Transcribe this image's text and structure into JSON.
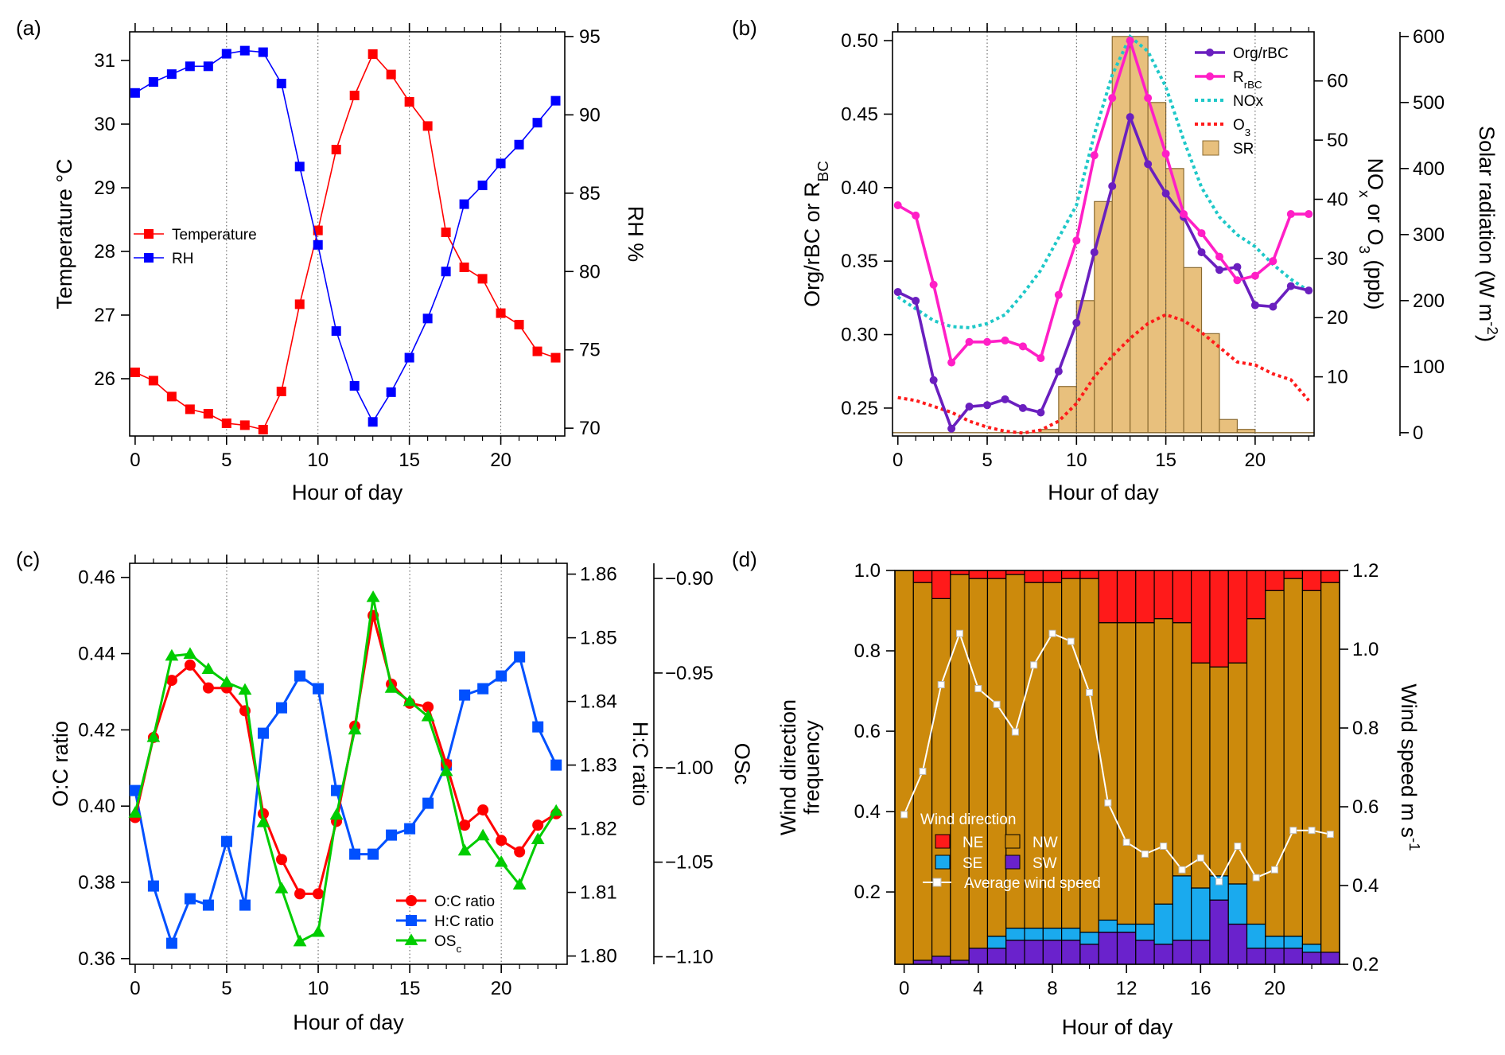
{
  "chart_data": [
    {
      "panel": "(a)",
      "type": "line",
      "xlabel": "Hour of day",
      "ylabel": "Temperature °C",
      "y2label": "RH %",
      "xlim": [
        -0.3,
        23.5
      ],
      "ylim": [
        25.1,
        31.45
      ],
      "y2lim": [
        69.5,
        95.3
      ],
      "xticks": [
        0,
        5,
        10,
        15,
        20
      ],
      "yticks": [
        26,
        27,
        28,
        29,
        30,
        31
      ],
      "y2ticks": [
        70,
        75,
        80,
        85,
        90,
        95
      ],
      "grid": "vertical dotted at 5, 10, 15, 20",
      "legend": "center-left",
      "x": [
        0,
        1,
        2,
        3,
        4,
        5,
        6,
        7,
        8,
        9,
        10,
        11,
        12,
        13,
        14,
        15,
        16,
        17,
        18,
        19,
        20,
        21,
        22,
        23
      ],
      "series": [
        {
          "name": "Temperature",
          "axis": "left",
          "color": "#ff0000",
          "marker": "square",
          "values": [
            26.1,
            25.97,
            25.72,
            25.52,
            25.45,
            25.3,
            25.27,
            25.2,
            25.8,
            27.17,
            28.33,
            29.6,
            30.45,
            31.1,
            30.78,
            30.35,
            29.97,
            28.3,
            27.75,
            27.57,
            27.03,
            26.85,
            26.43,
            26.33
          ]
        },
        {
          "name": "RH",
          "axis": "right",
          "color": "#0000ff",
          "marker": "square",
          "values": [
            91.4,
            92.1,
            92.6,
            93.1,
            93.1,
            93.9,
            94.1,
            94.0,
            92.0,
            86.7,
            81.7,
            76.2,
            72.7,
            70.4,
            72.3,
            74.5,
            77.0,
            80.0,
            84.3,
            85.5,
            86.9,
            88.1,
            89.5,
            90.9
          ]
        }
      ]
    },
    {
      "panel": "(b)",
      "type": "line",
      "xlabel": "Hour of day",
      "ylabel": "Org/rBC or R_BC",
      "ylabel_main": "Org/rBC or R",
      "ylabel_sub": "BC",
      "y2label_parts": [
        "NO",
        "x",
        " or O",
        "3",
        " (ppb)"
      ],
      "y3label_parts": [
        "Solar radiation (W m",
        "-2",
        ")"
      ],
      "xlim": [
        -0.3,
        23.3
      ],
      "ylim": [
        0.231,
        0.506
      ],
      "y2lim": [
        0,
        68.3
      ],
      "y3lim": [
        -5,
        607
      ],
      "xticks": [
        0,
        5,
        10,
        15,
        20
      ],
      "yticks": [
        0.25,
        0.3,
        0.35,
        0.4,
        0.45,
        0.5
      ],
      "y2ticks": [
        10,
        20,
        30,
        40,
        50,
        60
      ],
      "y3ticks": [
        0,
        100,
        200,
        300,
        400,
        500,
        600
      ],
      "grid": "vertical dotted at 5, 10, 15, 20",
      "legend": "top-right",
      "legend_entries": [
        {
          "label": "Org/rBC",
          "main": "Org/rBC",
          "sub": ""
        },
        {
          "label": "R_rBC",
          "main": "R",
          "sub": "rBC"
        },
        {
          "label": "NOx",
          "main": "NOx",
          "sub": ""
        },
        {
          "label": "O_3",
          "main": "O",
          "sub": "3"
        },
        {
          "label": "SR",
          "main": "SR",
          "sub": ""
        }
      ],
      "x": [
        0,
        1,
        2,
        3,
        4,
        5,
        6,
        7,
        8,
        9,
        10,
        11,
        12,
        13,
        14,
        15,
        16,
        17,
        18,
        19,
        20,
        21,
        22,
        23
      ],
      "series": [
        {
          "name": "Org/rBC",
          "axis": "left",
          "color": "#6a1fbf",
          "style": "line-circle",
          "values": [
            0.329,
            0.323,
            0.269,
            0.236,
            0.251,
            0.252,
            0.256,
            0.25,
            0.247,
            0.275,
            0.308,
            0.356,
            0.401,
            0.448,
            0.416,
            0.396,
            0.38,
            0.356,
            0.344,
            0.346,
            0.32,
            0.319,
            0.333,
            0.33
          ]
        },
        {
          "name": "R_rBC",
          "axis": "left",
          "color": "#ff1fc6",
          "style": "line-circle",
          "values": [
            0.388,
            0.381,
            0.334,
            0.281,
            0.295,
            0.295,
            0.296,
            0.292,
            0.284,
            0.327,
            0.364,
            0.422,
            0.461,
            0.5,
            0.461,
            0.423,
            0.382,
            0.369,
            0.353,
            0.337,
            0.34,
            0.35,
            0.382,
            0.382
          ]
        },
        {
          "name": "NOx",
          "axis": "right",
          "color": "#1ec8c8",
          "style": "dotted",
          "values": [
            23.5,
            21.5,
            19.5,
            18.5,
            18.3,
            19,
            20.5,
            24,
            28,
            33.5,
            39,
            51,
            61,
            67.5,
            65,
            59,
            50,
            42,
            37,
            34,
            32,
            29,
            26.5,
            24.5
          ]
        },
        {
          "name": "O_3",
          "axis": "right",
          "color": "#ff1a1a",
          "style": "dotted",
          "values": [
            6.5,
            6,
            5,
            4,
            2.5,
            1.5,
            0.8,
            0.5,
            1,
            2.5,
            5.5,
            10,
            13.5,
            16.5,
            19,
            20.5,
            19.5,
            17.5,
            15,
            12.5,
            12,
            10.5,
            9.5,
            6
          ]
        },
        {
          "name": "SR",
          "axis": "right2",
          "color": "#e8c07d",
          "style": "bar",
          "values": [
            0,
            0,
            0,
            0,
            0,
            0,
            0,
            0,
            5,
            70,
            200,
            350,
            600,
            600,
            500,
            400,
            250,
            150,
            20,
            5,
            0,
            0,
            0,
            0
          ]
        }
      ]
    },
    {
      "panel": "(c)",
      "type": "line",
      "xlabel": "Hour of day",
      "ylabel": "O:C ratio",
      "y2label": "H:C ratio",
      "y3label": "OSc",
      "xlim": [
        -0.3,
        23.6
      ],
      "ylim": [
        0.3585,
        0.4637
      ],
      "y2lim": [
        1.7987,
        1.8617
      ],
      "y3lim": [
        -1.104,
        -0.892
      ],
      "xticks": [
        0,
        5,
        10,
        15,
        20
      ],
      "yticks": [
        0.36,
        0.38,
        0.4,
        0.42,
        0.44,
        0.46
      ],
      "y2ticks": [
        1.8,
        1.81,
        1.82,
        1.83,
        1.84,
        1.85,
        1.86
      ],
      "y3ticks": [
        -1.1,
        -1.05,
        -1.0,
        -0.95,
        -0.9
      ],
      "grid": "vertical dotted at 5, 10, 15, 20",
      "legend": "bottom-right",
      "legend_entries": [
        {
          "label": "O:C ratio",
          "main": "O:C ratio",
          "sub": ""
        },
        {
          "label": "H:C ratio",
          "main": "H:C ratio",
          "sub": ""
        },
        {
          "label": "OS_c",
          "main": "OS",
          "sub": "c"
        }
      ],
      "x": [
        0,
        1,
        2,
        3,
        4,
        5,
        6,
        7,
        8,
        9,
        10,
        11,
        12,
        13,
        14,
        15,
        16,
        17,
        18,
        19,
        20,
        21,
        22,
        23
      ],
      "series": [
        {
          "name": "O:C ratio",
          "axis": "left",
          "color": "#ff0000",
          "marker": "circle",
          "values": [
            0.397,
            0.418,
            0.433,
            0.437,
            0.431,
            0.431,
            0.425,
            0.398,
            0.386,
            0.377,
            0.377,
            0.396,
            0.421,
            0.45,
            0.432,
            0.427,
            0.426,
            0.411,
            0.395,
            0.399,
            0.391,
            0.388,
            0.395,
            0.398
          ]
        },
        {
          "name": "H:C ratio",
          "axis": "right",
          "color": "#0050ff",
          "marker": "square",
          "values": [
            1.826,
            1.811,
            1.802,
            1.809,
            1.808,
            1.818,
            1.808,
            1.835,
            1.839,
            1.844,
            1.842,
            1.826,
            1.816,
            1.816,
            1.819,
            1.82,
            1.824,
            1.83,
            1.841,
            1.842,
            1.844,
            1.847,
            1.836,
            1.83
          ]
        },
        {
          "name": "OS_c",
          "axis": "right2",
          "color": "#00cc00",
          "marker": "triangle",
          "values": [
            -1.024,
            -0.984,
            -0.941,
            -0.94,
            -0.948,
            -0.955,
            -0.959,
            -1.029,
            -1.064,
            -1.092,
            -1.087,
            -1.025,
            -0.98,
            -0.91,
            -0.958,
            -0.965,
            -0.973,
            -1.002,
            -1.044,
            -1.036,
            -1.05,
            -1.062,
            -1.038,
            -1.023
          ]
        }
      ]
    },
    {
      "panel": "(d)",
      "type": "bar",
      "stacked": true,
      "xlabel": "Hour of day",
      "ylabel_lines": [
        "Wind direction",
        "frequency"
      ],
      "y2label_parts": [
        "Wind speed m s",
        "-1"
      ],
      "xlim": [
        -0.5,
        23.5
      ],
      "ylim": [
        0.02,
        1.0
      ],
      "y2lim": [
        0.2,
        1.2
      ],
      "xticks": [
        0,
        4,
        8,
        12,
        16,
        20
      ],
      "yticks": [
        0.2,
        0.4,
        0.6,
        0.8,
        1.0
      ],
      "y2ticks": [
        0.2,
        0.4,
        0.6,
        0.8,
        1.0,
        1.2
      ],
      "legend": "bottom-left",
      "legend_title": "Wind direction",
      "x": [
        0,
        1,
        2,
        3,
        4,
        5,
        6,
        7,
        8,
        9,
        10,
        11,
        12,
        13,
        14,
        15,
        16,
        17,
        18,
        19,
        20,
        21,
        22,
        23
      ],
      "series": [
        {
          "name": "SW",
          "color": "#6a22cc",
          "values": [
            0.02,
            0.03,
            0.04,
            0.03,
            0.06,
            0.06,
            0.08,
            0.08,
            0.08,
            0.08,
            0.07,
            0.1,
            0.1,
            0.08,
            0.07,
            0.08,
            0.08,
            0.18,
            0.12,
            0.06,
            0.06,
            0.06,
            0.05,
            0.05
          ]
        },
        {
          "name": "SE",
          "color": "#1aaaee",
          "values": [
            0,
            0,
            0,
            0,
            0,
            0.03,
            0.03,
            0.03,
            0.03,
            0.03,
            0.03,
            0.03,
            0.02,
            0.04,
            0.1,
            0.16,
            0.13,
            0.06,
            0.1,
            0.06,
            0.03,
            0.03,
            0.02,
            0.0
          ]
        },
        {
          "name": "NW",
          "color": "#cc8a0c",
          "values": [
            0.98,
            0.94,
            0.89,
            0.96,
            0.92,
            0.89,
            0.88,
            0.86,
            0.86,
            0.87,
            0.88,
            0.74,
            0.75,
            0.75,
            0.71,
            0.63,
            0.56,
            0.52,
            0.55,
            0.76,
            0.86,
            0.89,
            0.88,
            0.92
          ]
        },
        {
          "name": "NE",
          "color": "#ff1a1a",
          "values": [
            0,
            0.03,
            0.07,
            0.01,
            0.02,
            0.02,
            0.01,
            0.03,
            0.03,
            0.02,
            0.02,
            0.13,
            0.13,
            0.13,
            0.12,
            0.13,
            0.23,
            0.24,
            0.23,
            0.12,
            0.05,
            0.02,
            0.05,
            0.03
          ]
        }
      ],
      "line": {
        "name": "Average wind speed",
        "axis": "right",
        "color": "#ffffff",
        "values": [
          0.58,
          0.69,
          0.91,
          1.04,
          0.9,
          0.86,
          0.79,
          0.96,
          1.04,
          1.02,
          0.89,
          0.61,
          0.51,
          0.48,
          0.5,
          0.44,
          0.47,
          0.41,
          0.5,
          0.42,
          0.44,
          0.54,
          0.54,
          0.53
        ]
      }
    }
  ]
}
